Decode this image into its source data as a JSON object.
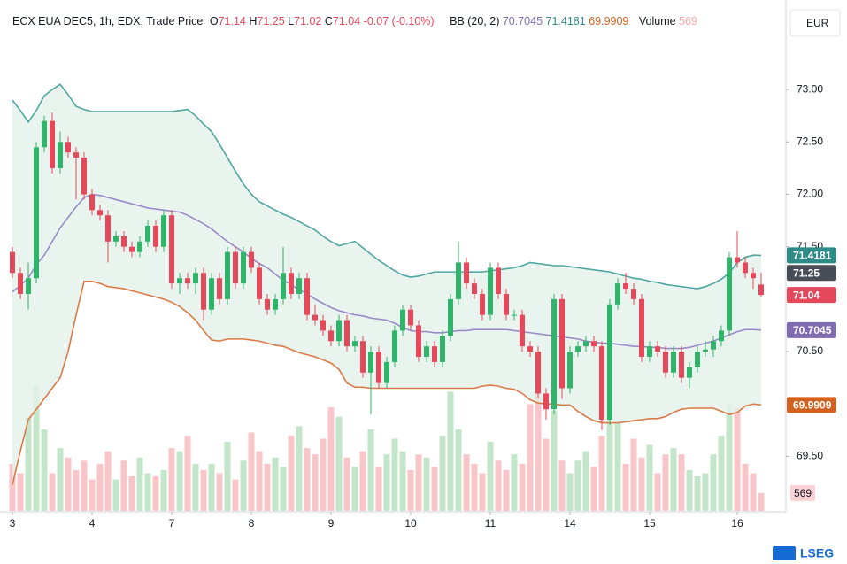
{
  "chart_data": {
    "type": "candlestick",
    "currency": "EUR",
    "watermark": "LSEG",
    "header": {
      "title": "ECX EUA DEC5, 1h, EDX, Trade Price",
      "o": "O",
      "h": "H",
      "l": "L",
      "c": "C",
      "change": -0.07,
      "change_pct": {
        "value": -0.1,
        "label": "(-0.10%)"
      },
      "bb": "BB (20, 2)",
      "volume": "Volume"
    },
    "categories": [
      "3",
      null,
      null,
      null,
      null,
      null,
      null,
      null,
      null,
      null,
      "4",
      null,
      null,
      null,
      null,
      null,
      null,
      null,
      null,
      null,
      "7",
      null,
      null,
      null,
      null,
      null,
      null,
      null,
      null,
      null,
      "8",
      null,
      null,
      null,
      null,
      null,
      null,
      null,
      null,
      null,
      "9",
      null,
      null,
      null,
      null,
      null,
      null,
      null,
      null,
      null,
      "10",
      null,
      null,
      null,
      null,
      null,
      null,
      null,
      null,
      null,
      "11",
      null,
      null,
      null,
      null,
      null,
      null,
      null,
      null,
      null,
      "14",
      null,
      null,
      null,
      null,
      null,
      null,
      null,
      null,
      null,
      "15",
      null,
      null,
      null,
      null,
      null,
      null,
      null,
      null,
      null,
      null,
      "16",
      null,
      null,
      null
    ],
    "ohlc": [
      [
        71.45,
        71.5,
        71.2,
        71.25
      ],
      [
        71.25,
        71.3,
        71.0,
        71.05
      ],
      [
        71.05,
        71.35,
        70.9,
        71.2
      ],
      [
        71.2,
        72.5,
        71.15,
        72.45
      ],
      [
        72.45,
        72.75,
        72.4,
        72.7
      ],
      [
        72.7,
        72.78,
        72.2,
        72.25
      ],
      [
        72.25,
        72.6,
        72.2,
        72.5
      ],
      [
        72.5,
        72.55,
        72.35,
        72.4
      ],
      [
        72.4,
        72.45,
        71.95,
        72.35
      ],
      [
        72.35,
        72.4,
        71.95,
        72.0
      ],
      [
        72.0,
        72.05,
        71.8,
        71.85
      ],
      [
        71.85,
        71.9,
        71.75,
        71.8
      ],
      [
        71.8,
        71.85,
        71.35,
        71.55
      ],
      [
        71.55,
        71.65,
        71.5,
        71.6
      ],
      [
        71.6,
        71.65,
        71.45,
        71.5
      ],
      [
        71.5,
        71.55,
        71.4,
        71.45
      ],
      [
        71.45,
        71.6,
        71.4,
        71.55
      ],
      [
        71.55,
        71.75,
        71.5,
        71.7
      ],
      [
        71.7,
        71.75,
        71.45,
        71.5
      ],
      [
        71.5,
        71.85,
        71.45,
        71.8
      ],
      [
        71.8,
        71.85,
        71.1,
        71.15
      ],
      [
        71.15,
        71.25,
        71.05,
        71.2
      ],
      [
        71.2,
        71.25,
        71.1,
        71.15
      ],
      [
        71.15,
        71.3,
        71.05,
        71.25
      ],
      [
        71.25,
        71.3,
        70.8,
        70.9
      ],
      [
        70.9,
        71.25,
        70.85,
        71.2
      ],
      [
        71.2,
        71.25,
        70.95,
        71.0
      ],
      [
        71.0,
        71.5,
        70.95,
        71.45
      ],
      [
        71.45,
        71.5,
        71.1,
        71.15
      ],
      [
        71.15,
        71.5,
        71.1,
        71.45
      ],
      [
        71.45,
        71.5,
        71.25,
        71.3
      ],
      [
        71.3,
        71.35,
        70.95,
        71.0
      ],
      [
        71.0,
        71.05,
        70.85,
        70.9
      ],
      [
        70.9,
        71.05,
        70.85,
        71.0
      ],
      [
        71.0,
        71.5,
        70.95,
        71.25
      ],
      [
        71.25,
        71.3,
        71.0,
        71.05
      ],
      [
        71.05,
        71.25,
        71.0,
        71.2
      ],
      [
        71.2,
        71.25,
        70.8,
        70.85
      ],
      [
        70.85,
        70.95,
        70.75,
        70.8
      ],
      [
        70.8,
        70.85,
        70.65,
        70.7
      ],
      [
        70.7,
        70.75,
        70.55,
        70.6
      ],
      [
        70.6,
        70.85,
        70.55,
        70.8
      ],
      [
        70.8,
        70.85,
        70.5,
        70.55
      ],
      [
        70.55,
        70.65,
        70.5,
        70.6
      ],
      [
        70.6,
        70.65,
        70.25,
        70.3
      ],
      [
        70.3,
        70.55,
        69.9,
        70.5
      ],
      [
        70.5,
        70.55,
        70.15,
        70.2
      ],
      [
        70.2,
        70.45,
        70.15,
        70.4
      ],
      [
        70.4,
        70.75,
        70.35,
        70.7
      ],
      [
        70.7,
        70.95,
        70.65,
        70.9
      ],
      [
        70.9,
        70.95,
        70.7,
        70.75
      ],
      [
        70.75,
        70.8,
        70.4,
        70.45
      ],
      [
        70.45,
        70.6,
        70.4,
        70.55
      ],
      [
        70.55,
        70.6,
        70.35,
        70.4
      ],
      [
        70.4,
        70.7,
        70.35,
        70.65
      ],
      [
        70.65,
        71.05,
        70.6,
        71.0
      ],
      [
        71.0,
        71.55,
        70.95,
        71.35
      ],
      [
        71.35,
        71.4,
        71.1,
        71.15
      ],
      [
        71.15,
        71.2,
        71.0,
        71.05
      ],
      [
        71.05,
        71.1,
        70.8,
        70.85
      ],
      [
        70.85,
        71.35,
        70.8,
        71.3
      ],
      [
        71.3,
        71.35,
        71.0,
        71.05
      ],
      [
        71.05,
        71.1,
        70.8,
        70.85
      ],
      [
        70.85,
        70.9,
        70.8,
        70.85
      ],
      [
        70.85,
        70.9,
        70.5,
        70.55
      ],
      [
        70.55,
        70.6,
        70.45,
        70.5
      ],
      [
        70.5,
        70.55,
        70.05,
        70.1
      ],
      [
        70.1,
        70.15,
        69.85,
        69.95
      ],
      [
        69.95,
        71.05,
        69.9,
        71.0
      ],
      [
        71.0,
        71.05,
        70.05,
        70.15
      ],
      [
        70.15,
        70.55,
        70.1,
        70.5
      ],
      [
        70.5,
        70.6,
        70.45,
        70.55
      ],
      [
        70.55,
        70.65,
        70.5,
        70.6
      ],
      [
        70.6,
        70.65,
        70.5,
        70.55
      ],
      [
        70.55,
        70.6,
        69.75,
        69.85
      ],
      [
        69.85,
        71.0,
        69.8,
        70.95
      ],
      [
        70.95,
        71.2,
        70.9,
        71.15
      ],
      [
        71.15,
        71.25,
        71.05,
        71.1
      ],
      [
        71.1,
        71.15,
        70.95,
        71.0
      ],
      [
        71.0,
        71.05,
        70.4,
        70.45
      ],
      [
        70.45,
        70.6,
        70.4,
        70.55
      ],
      [
        70.55,
        70.6,
        70.45,
        70.5
      ],
      [
        70.5,
        70.55,
        70.25,
        70.3
      ],
      [
        70.3,
        70.55,
        70.25,
        70.5
      ],
      [
        70.5,
        70.55,
        70.2,
        70.25
      ],
      [
        70.25,
        70.4,
        70.15,
        70.35
      ],
      [
        70.35,
        70.55,
        70.3,
        70.5
      ],
      [
        70.5,
        70.6,
        70.45,
        70.52
      ],
      [
        70.52,
        70.65,
        70.45,
        70.6
      ],
      [
        70.6,
        70.75,
        70.55,
        70.7
      ],
      [
        70.7,
        71.45,
        70.65,
        71.4
      ],
      [
        71.4,
        71.65,
        71.3,
        71.35
      ],
      [
        71.35,
        71.4,
        71.2,
        71.25
      ],
      [
        71.25,
        71.3,
        71.1,
        71.2
      ],
      [
        71.14,
        71.25,
        71.02,
        71.04
      ]
    ],
    "volume": [
      1500,
      1200,
      3000,
      4000,
      2600,
      1200,
      2000,
      1700,
      1300,
      1600,
      1000,
      1500,
      1900,
      1000,
      1600,
      1100,
      1700,
      1200,
      1100,
      1300,
      2000,
      1900,
      2400,
      1500,
      1300,
      1500,
      1200,
      2200,
      1000,
      1600,
      2500,
      1900,
      1500,
      1700,
      1400,
      2400,
      2700,
      2000,
      1800,
      2300,
      3300,
      3000,
      1700,
      1400,
      1900,
      2600,
      1400,
      1800,
      2300,
      1900,
      1300,
      1800,
      1700,
      1400,
      2400,
      3800,
      2600,
      1800,
      1500,
      1200,
      2200,
      1600,
      1300,
      1800,
      1500,
      3400,
      4000,
      2300,
      3200,
      1600,
      1200,
      1600,
      1900,
      1400,
      2400,
      3400,
      2800,
      1500,
      2300,
      1700,
      2100,
      1200,
      1800,
      2000,
      1800,
      1300,
      1100,
      1200,
      1800,
      2400,
      3400,
      3300,
      1500,
      1200,
      569
    ],
    "bb_upper": [
      72.9,
      72.8,
      72.69,
      72.8,
      72.94,
      73.0,
      73.05,
      72.95,
      72.84,
      72.81,
      72.79,
      72.79,
      72.79,
      72.79,
      72.79,
      72.79,
      72.79,
      72.79,
      72.79,
      72.79,
      72.79,
      72.8,
      72.81,
      72.75,
      72.67,
      72.6,
      72.48,
      72.35,
      72.22,
      72.1,
      72.0,
      71.93,
      71.89,
      71.85,
      71.81,
      71.78,
      71.74,
      71.7,
      71.66,
      71.6,
      71.55,
      71.51,
      71.53,
      71.55,
      71.49,
      71.43,
      71.37,
      71.32,
      71.27,
      71.23,
      71.21,
      71.22,
      71.24,
      71.26,
      71.26,
      71.26,
      71.26,
      71.26,
      71.26,
      71.26,
      71.27,
      71.28,
      71.29,
      71.3,
      71.32,
      71.35,
      71.34,
      71.33,
      71.32,
      71.32,
      71.31,
      71.3,
      71.29,
      71.28,
      71.27,
      71.26,
      71.24,
      71.22,
      71.2,
      71.19,
      71.17,
      71.16,
      71.14,
      71.13,
      71.12,
      71.11,
      71.1,
      71.12,
      71.15,
      71.19,
      71.25,
      71.35,
      71.4,
      71.42,
      71.4181
    ],
    "bb_middle": [
      71.07,
      71.13,
      71.2,
      71.33,
      71.42,
      71.55,
      71.68,
      71.78,
      71.88,
      71.97,
      72.0,
      71.99,
      71.97,
      71.95,
      71.93,
      71.91,
      71.89,
      71.87,
      71.86,
      71.85,
      71.84,
      71.83,
      71.8,
      71.76,
      71.72,
      71.67,
      71.61,
      71.55,
      71.5,
      71.45,
      71.39,
      71.34,
      71.3,
      71.24,
      71.18,
      71.14,
      71.09,
      71.05,
      71.0,
      70.96,
      70.92,
      70.89,
      70.87,
      70.85,
      70.84,
      70.82,
      70.81,
      70.8,
      70.77,
      70.73,
      70.7,
      70.69,
      70.69,
      70.68,
      70.68,
      70.69,
      70.7,
      70.7,
      70.71,
      70.71,
      70.71,
      70.71,
      70.71,
      70.7,
      70.69,
      70.68,
      70.67,
      70.66,
      70.65,
      70.64,
      70.63,
      70.62,
      70.6,
      70.59,
      70.58,
      70.58,
      70.57,
      70.56,
      70.55,
      70.55,
      70.54,
      70.54,
      70.53,
      70.53,
      70.53,
      70.54,
      70.56,
      70.58,
      70.6,
      70.63,
      70.66,
      70.69,
      70.71,
      70.71,
      70.7045
    ],
    "bb_lower": [
      69.23,
      69.55,
      69.85,
      69.95,
      70.05,
      70.15,
      70.25,
      70.5,
      70.85,
      71.17,
      71.17,
      71.15,
      71.12,
      71.11,
      71.1,
      71.08,
      71.06,
      71.04,
      71.02,
      71.0,
      70.97,
      70.93,
      70.87,
      70.8,
      70.7,
      70.61,
      70.6,
      70.62,
      70.62,
      70.62,
      70.61,
      70.6,
      70.58,
      70.56,
      70.55,
      70.52,
      70.49,
      70.47,
      70.45,
      70.42,
      70.39,
      70.33,
      70.2,
      70.16,
      70.16,
      70.15,
      70.15,
      70.15,
      70.15,
      70.15,
      70.15,
      70.15,
      70.15,
      70.15,
      70.15,
      70.15,
      70.15,
      70.15,
      70.15,
      70.17,
      70.18,
      70.17,
      70.15,
      70.14,
      70.1,
      70.04,
      70.01,
      70.0,
      70.0,
      69.99,
      69.99,
      69.93,
      69.88,
      69.84,
      69.82,
      69.82,
      69.82,
      69.83,
      69.84,
      69.85,
      69.86,
      69.86,
      69.88,
      69.92,
      69.95,
      69.96,
      69.96,
      69.96,
      69.96,
      69.93,
      69.9,
      69.92,
      69.98,
      70.0,
      69.9909
    ],
    "colors": {
      "up": "#2fb46a",
      "down": "#e5485b",
      "vol_up": "#c3e5c9",
      "vol_down": "#f8c5c9",
      "upper": "#4ea5a1",
      "middle": "#9a8bc6",
      "lower": "#d97a48",
      "band": "#e5f1eb",
      "high_badge": "#474d57"
    },
    "ylim": [
      68.98,
      73.77
    ],
    "yticks": [
      {
        "value": 69.5,
        "label": "69.50"
      },
      {
        "value": 70.5,
        "label": "70.50"
      },
      {
        "value": 71.5,
        "label": "71.50"
      },
      {
        "value": 72,
        "label": "72.00"
      },
      {
        "value": 72.5,
        "label": "72.50"
      },
      {
        "value": 73,
        "label": "73.00"
      }
    ],
    "vlim": [
      0,
      16000
    ],
    "grid": false
  }
}
